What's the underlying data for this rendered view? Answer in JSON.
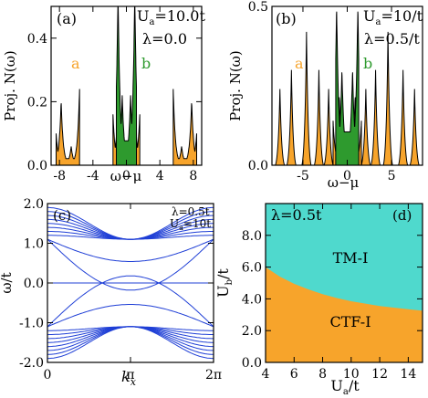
{
  "colors": {
    "orange": "#f7a42b",
    "green": "#2e9a2e",
    "blue": "#1f3fd6",
    "cyan": "#4fd9cd",
    "axis": "#000000"
  },
  "chart_data": [
    {
      "type": "area",
      "panel_label": "(a)",
      "xlabel": "ω−μ",
      "ylabel": "Proj. N(ω)",
      "xlim": [
        -9,
        9
      ],
      "ylim": [
        0,
        0.5
      ],
      "xticks": [
        -8,
        -4,
        0,
        4,
        8
      ],
      "xtick_labels": [
        "-8",
        "-4",
        "0",
        "4",
        "8"
      ],
      "yticks": [
        0,
        0.2,
        0.4
      ],
      "ytick_labels": [
        "0.0",
        "0.2",
        "0.4"
      ],
      "annotations": {
        "param1": "U",
        "param1_sub": "a",
        "param1_value": "=10.0t",
        "param2": "λ=0.0"
      },
      "series": [
        {
          "name": "a",
          "color": "orange",
          "bands": [
            {
              "lo": -8.4,
              "hi": -5.6,
              "peaks": [
                [
                  -8.4,
                  0.1
                ],
                [
                  -7.8,
                  0.2
                ],
                [
                  -6.6,
                  0.06
                ],
                [
                  -5.6,
                  0.24
                ]
              ]
            },
            {
              "lo": 5.6,
              "hi": 8.4,
              "peaks": [
                [
                  5.6,
                  0.24
                ],
                [
                  6.6,
                  0.06
                ],
                [
                  7.8,
                  0.2
                ],
                [
                  8.4,
                  0.1
                ]
              ]
            },
            {
              "lo": -1.6,
              "hi": 1.6,
              "peaks": [
                [
                  -1.6,
                  0.16
                ],
                [
                  -0.9,
                  0.3
                ],
                [
                  0.9,
                  0.3
                ],
                [
                  1.6,
                  0.16
                ]
              ]
            }
          ]
        },
        {
          "name": "b",
          "color": "green",
          "bands": [
            {
              "lo": -1.2,
              "hi": 1.2,
              "peaks": [
                [
                  -1.0,
                  0.55
                ],
                [
                  -0.5,
                  0.22
                ],
                [
                  0.5,
                  0.22
                ],
                [
                  1.0,
                  0.55
                ]
              ]
            }
          ]
        }
      ]
    },
    {
      "type": "area",
      "panel_label": "(b)",
      "xlabel": "ω−μ",
      "ylabel": "Proj. N(ω)",
      "xlim": [
        -8.5,
        8.5
      ],
      "ylim": [
        0,
        0.5
      ],
      "xticks": [
        -5,
        0,
        5
      ],
      "xtick_labels": [
        "-5",
        "0",
        "5"
      ],
      "yticks": [
        0,
        0.5
      ],
      "ytick_labels": [
        "0.0",
        "0.5"
      ],
      "annotations": {
        "param1": "U",
        "param1_sub": "a",
        "param1_value": "=10/t",
        "param2": "λ=0.5/t"
      },
      "series": [
        {
          "name": "a",
          "color": "orange",
          "spikes": [
            -7.6,
            -6.3,
            -4.6,
            -3.2,
            -2.1,
            2.1,
            3.2,
            4.6,
            6.3,
            7.6
          ],
          "spike_heights": [
            0.08,
            0.1,
            0.14,
            0.1,
            0.08,
            0.08,
            0.1,
            0.14,
            0.1,
            0.08
          ],
          "bands": [
            {
              "lo": -1.6,
              "hi": 1.6,
              "peaks": [
                [
                  -1.6,
                  0.14
                ],
                [
                  -0.9,
                  0.22
                ],
                [
                  0.9,
                  0.22
                ],
                [
                  1.6,
                  0.14
                ]
              ]
            }
          ]
        },
        {
          "name": "b",
          "color": "green",
          "bands": [
            {
              "lo": -1.3,
              "hi": 1.3,
              "peaks": [
                [
                  -1.2,
                  0.5
                ],
                [
                  -0.6,
                  0.3
                ],
                [
                  0.6,
                  0.3
                ],
                [
                  1.2,
                  0.5
                ]
              ]
            }
          ]
        }
      ]
    },
    {
      "type": "line",
      "panel_label": "(c)",
      "xlabel": "k_x",
      "ylabel": "ω/t",
      "xlim": [
        0,
        6.2832
      ],
      "ylim": [
        -2,
        2
      ],
      "xticks": [
        0,
        3.1416,
        6.2832
      ],
      "xtick_labels": [
        "0",
        "π",
        "2π"
      ],
      "yticks": [
        -2,
        -1,
        0,
        1,
        2
      ],
      "ytick_labels": [
        "-2.0",
        "-1.0",
        "0.0",
        "1.0",
        "2.0"
      ],
      "annotations": {
        "param2": "λ=0.5t",
        "param1": "U",
        "param1_sub": "a",
        "param1_value": "=10t"
      },
      "bands": {
        "upper_center": 1.1,
        "upper_amplitudes": [
          0.1,
          0.2,
          0.3,
          0.4,
          0.5,
          0.6,
          0.7,
          0.8
        ],
        "lower_center": -1.1,
        "lower_amplitudes": [
          0.1,
          0.2,
          0.3,
          0.4,
          0.5,
          0.6,
          0.7,
          0.8
        ],
        "edge_state_slopes": [
          0.35,
          -0.35,
          0.8,
          -0.8
        ]
      }
    },
    {
      "type": "area",
      "panel_label": "(d)",
      "xlabel": "U_a/t",
      "ylabel": "U_b/t",
      "xlim": [
        4,
        15
      ],
      "ylim": [
        0,
        10
      ],
      "xticks": [
        4,
        6,
        8,
        10,
        12,
        14
      ],
      "xtick_labels": [
        "4",
        "6",
        "8",
        "10",
        "12",
        "14"
      ],
      "yticks": [
        0,
        2,
        4,
        6,
        8
      ],
      "ytick_labels": [
        "0.0",
        "2.0",
        "4.0",
        "6.0",
        "8.0"
      ],
      "annotations": {
        "param2": "λ=0.5t"
      },
      "regions": [
        {
          "name": "TM-I",
          "color": "cyan"
        },
        {
          "name": "CTF-I",
          "color": "orange"
        }
      ],
      "boundary": {
        "x": [
          4,
          5,
          6,
          7,
          8,
          9,
          10,
          11,
          12,
          13,
          14,
          15
        ],
        "y": [
          6.0,
          5.4,
          4.95,
          4.6,
          4.3,
          4.05,
          3.85,
          3.7,
          3.55,
          3.45,
          3.35,
          3.25
        ]
      }
    }
  ]
}
